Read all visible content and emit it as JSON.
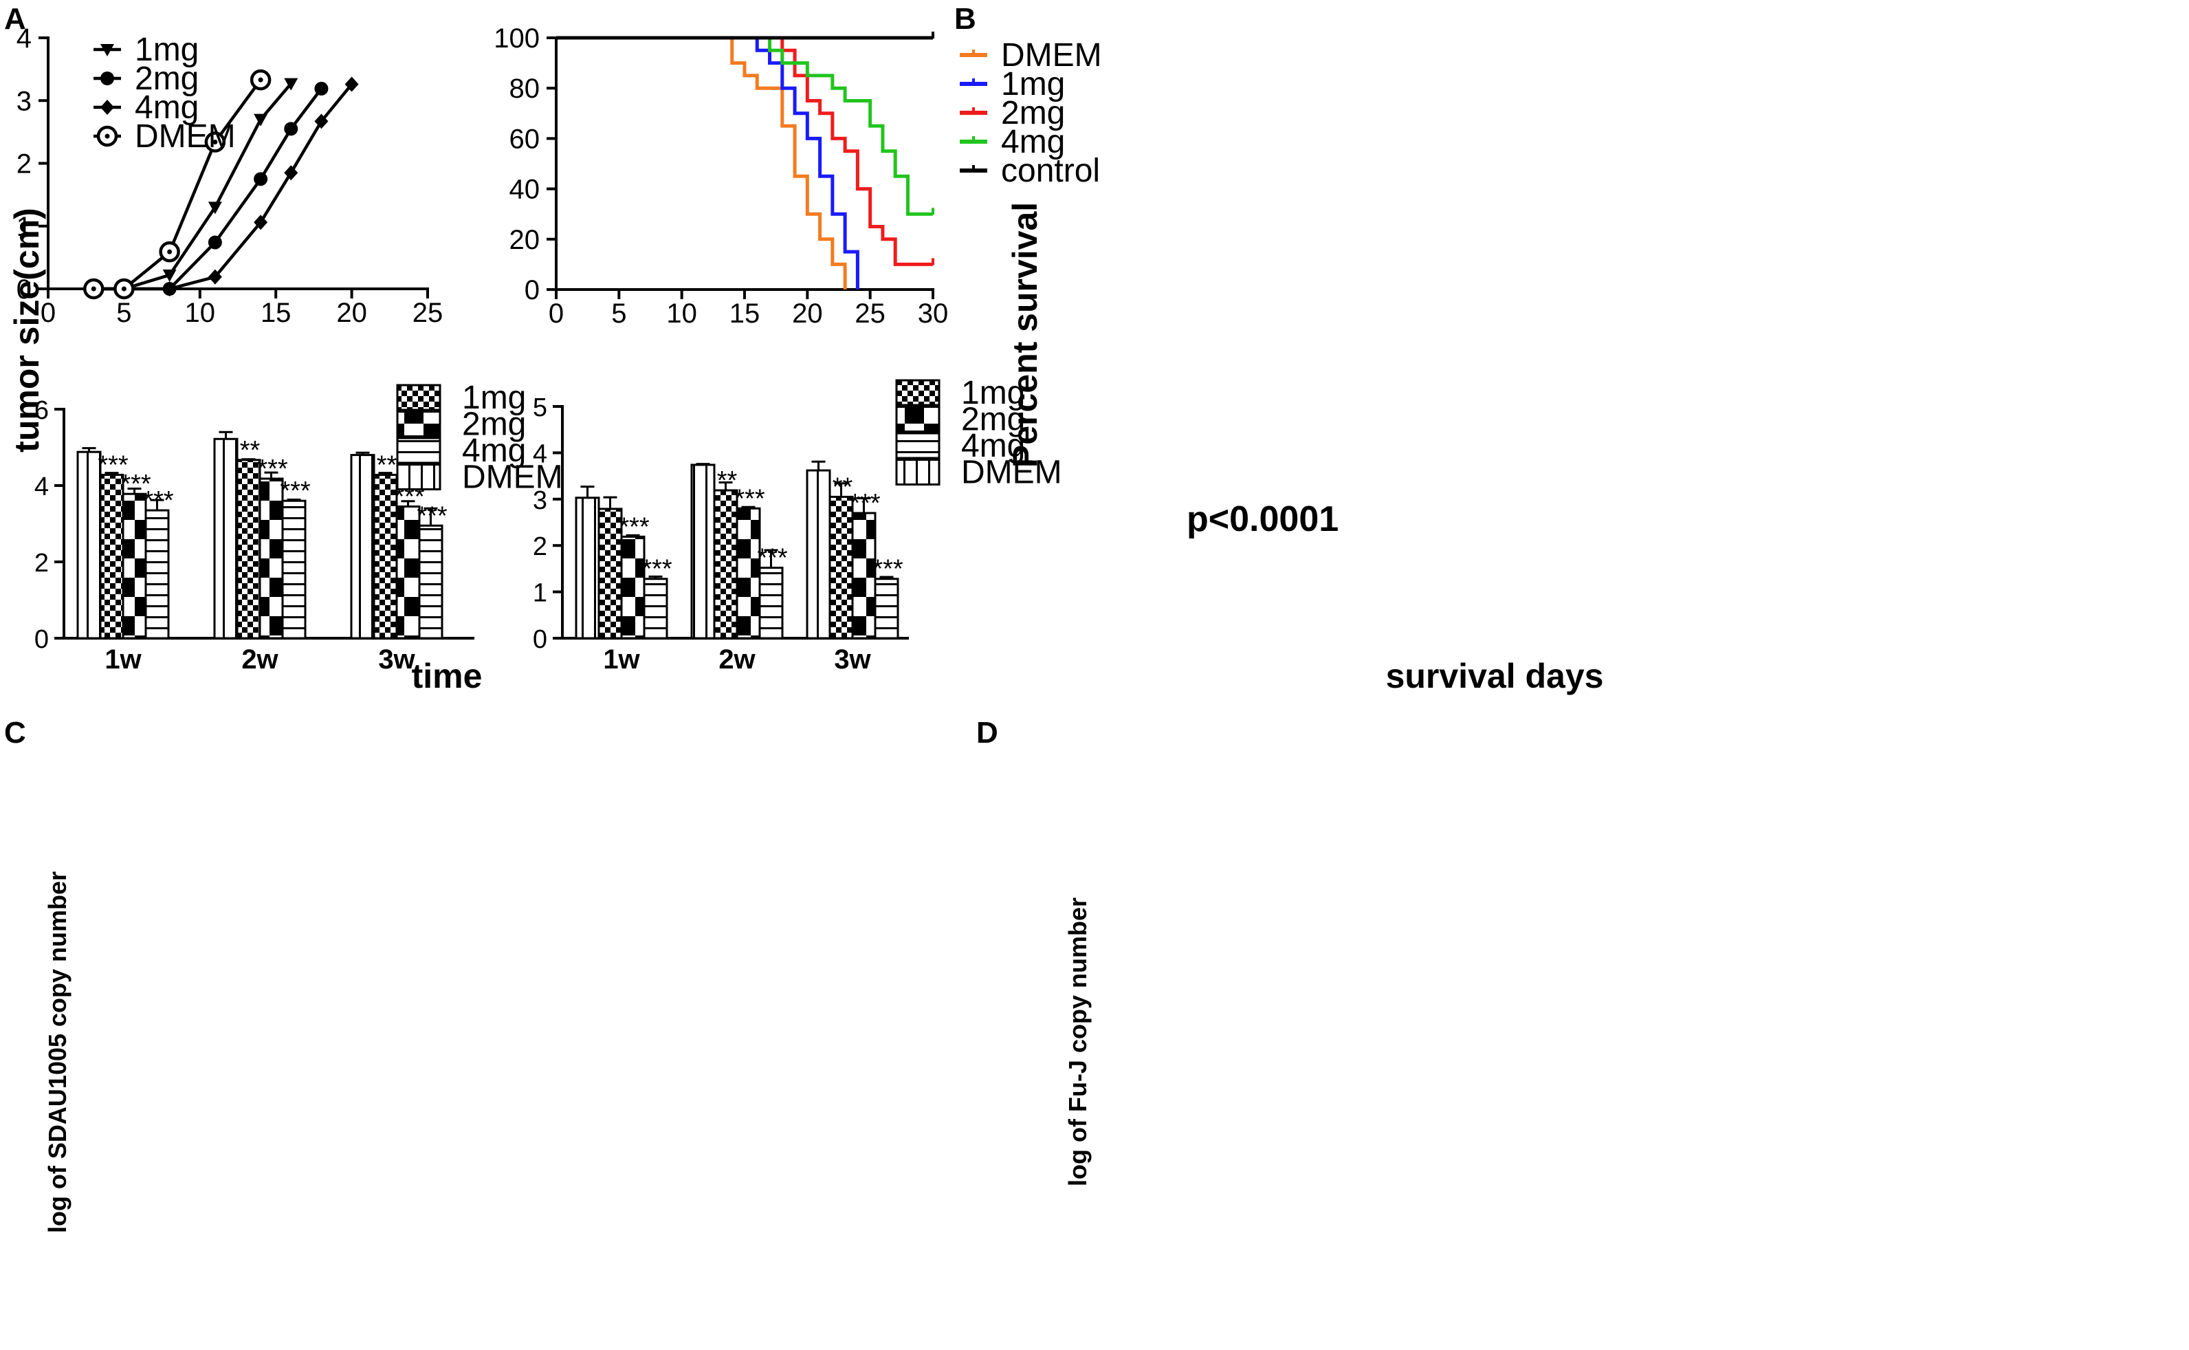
{
  "colors": {
    "DMEM": "#f47b20",
    "1mg": "#1a1aff",
    "2mg": "#ef1c1c",
    "4mg": "#22c41e",
    "control": "#000000"
  },
  "chart_data": [
    {
      "panel": "A",
      "type": "line",
      "xlabel": "time",
      "ylabel": "tumor size(cm)",
      "xlim": [
        0,
        25
      ],
      "ylim": [
        0,
        4
      ],
      "xticks": [
        0,
        5,
        10,
        15,
        20,
        25
      ],
      "yticks": [
        0,
        1,
        2,
        3,
        4
      ],
      "series": [
        {
          "name": "1mg",
          "marker": "triangle-down",
          "x": [
            3,
            5,
            8,
            11,
            14,
            16
          ],
          "y": [
            0,
            0,
            0.22,
            1.3,
            2.7,
            3.27
          ]
        },
        {
          "name": "2mg",
          "marker": "circle",
          "x": [
            3,
            5,
            8,
            11,
            14,
            16,
            18
          ],
          "y": [
            0,
            0,
            0,
            0.74,
            1.75,
            2.55,
            3.19
          ]
        },
        {
          "name": "4mg",
          "marker": "diamond",
          "x": [
            3,
            5,
            8,
            11,
            14,
            16,
            18,
            20
          ],
          "y": [
            0,
            0,
            0,
            0.19,
            1.06,
            1.85,
            2.67,
            3.26
          ]
        },
        {
          "name": "DMEM",
          "marker": "circle-open",
          "x": [
            3,
            5,
            8,
            11,
            14
          ],
          "y": [
            0,
            0,
            0.59,
            2.34,
            3.33
          ]
        }
      ]
    },
    {
      "panel": "B",
      "type": "line",
      "subtype": "kaplan-meier",
      "xlabel": "survival days",
      "ylabel": "Percent survival",
      "xlim": [
        0,
        30
      ],
      "ylim": [
        0,
        100
      ],
      "xticks": [
        0,
        5,
        10,
        15,
        20,
        25,
        30
      ],
      "yticks": [
        0,
        20,
        40,
        60,
        80,
        100
      ],
      "annotation": "p<0.0001",
      "series": [
        {
          "name": "DMEM",
          "steps": [
            [
              0,
              100
            ],
            [
              14,
              90
            ],
            [
              15,
              85
            ],
            [
              16,
              80
            ],
            [
              18,
              65
            ],
            [
              19,
              45
            ],
            [
              20,
              30
            ],
            [
              21,
              20
            ],
            [
              22,
              10
            ],
            [
              23,
              0
            ]
          ]
        },
        {
          "name": "1mg",
          "steps": [
            [
              0,
              100
            ],
            [
              16,
              95
            ],
            [
              17,
              90
            ],
            [
              18,
              80
            ],
            [
              19,
              70
            ],
            [
              20,
              60
            ],
            [
              21,
              45
            ],
            [
              22,
              30
            ],
            [
              23,
              15
            ],
            [
              24,
              0
            ]
          ]
        },
        {
          "name": "2mg",
          "steps": [
            [
              0,
              100
            ],
            [
              18,
              95
            ],
            [
              19,
              85
            ],
            [
              20,
              75
            ],
            [
              21,
              70
            ],
            [
              22,
              60
            ],
            [
              23,
              55
            ],
            [
              24,
              40
            ],
            [
              25,
              25
            ],
            [
              26,
              20
            ],
            [
              27,
              10
            ],
            [
              30,
              10
            ]
          ]
        },
        {
          "name": "4mg",
          "steps": [
            [
              0,
              100
            ],
            [
              17,
              95
            ],
            [
              18,
              90
            ],
            [
              20,
              85
            ],
            [
              22,
              80
            ],
            [
              23,
              75
            ],
            [
              25,
              65
            ],
            [
              26,
              55
            ],
            [
              27,
              45
            ],
            [
              28,
              30
            ],
            [
              30,
              30
            ]
          ]
        },
        {
          "name": "control",
          "steps": [
            [
              0,
              100
            ],
            [
              30,
              100
            ]
          ]
        }
      ]
    },
    {
      "panel": "C",
      "type": "bar",
      "xlabel": "",
      "ylabel": "log of SDAU1005 copy number",
      "ylim": [
        0,
        6
      ],
      "yticks": [
        0,
        2,
        4,
        6
      ],
      "categories": [
        "1w",
        "2w",
        "3w"
      ],
      "legend": [
        "1mg",
        "2mg",
        "4mg",
        "DMEM"
      ],
      "series": [
        {
          "name": "DMEM",
          "values": [
            4.88,
            5.22,
            4.8
          ],
          "errors": [
            0.1,
            0.18,
            0.06
          ],
          "stars": [
            "",
            "",
            ""
          ]
        },
        {
          "name": "1mg",
          "values": [
            4.28,
            4.67,
            4.28
          ],
          "errors": [
            0.05,
            0.02,
            0.05
          ],
          "stars": [
            "***",
            "**",
            "**"
          ]
        },
        {
          "name": "2mg",
          "values": [
            3.78,
            4.18,
            3.45
          ],
          "errors": [
            0.14,
            0.16,
            0.14
          ],
          "stars": [
            "***",
            "***",
            "***"
          ]
        },
        {
          "name": "4mg",
          "values": [
            3.35,
            3.6,
            2.95
          ],
          "errors": [
            0.27,
            0.03,
            0.45
          ],
          "stars": [
            "***",
            "***",
            "***"
          ]
        }
      ]
    },
    {
      "panel": "D",
      "type": "bar",
      "xlabel": "",
      "ylabel": "log of Fu-J copy number",
      "ylim": [
        0,
        5
      ],
      "yticks": [
        0,
        1,
        2,
        3,
        4,
        5
      ],
      "categories": [
        "1w",
        "2w",
        "3w"
      ],
      "legend": [
        "1mg",
        "2mg",
        "4mg",
        "DMEM"
      ],
      "series": [
        {
          "name": "DMEM",
          "values": [
            3.03,
            3.74,
            3.62
          ],
          "errors": [
            0.24,
            0.02,
            0.19
          ],
          "stars": [
            "",
            "",
            ""
          ]
        },
        {
          "name": "1mg",
          "values": [
            2.79,
            3.19,
            3.05
          ],
          "errors": [
            0.25,
            0.17,
            0.29
          ],
          "stars": [
            "",
            "**",
            "**"
          ]
        },
        {
          "name": "2mg",
          "values": [
            2.19,
            2.8,
            2.7
          ],
          "errors": [
            0.03,
            0.03,
            0.32
          ],
          "stars": [
            "***",
            "***",
            "***"
          ]
        },
        {
          "name": "4mg",
          "values": [
            1.28,
            1.52,
            1.28
          ],
          "errors": [
            0.05,
            0.38,
            0.04
          ],
          "stars": [
            "***",
            "***",
            "***"
          ]
        }
      ]
    }
  ]
}
